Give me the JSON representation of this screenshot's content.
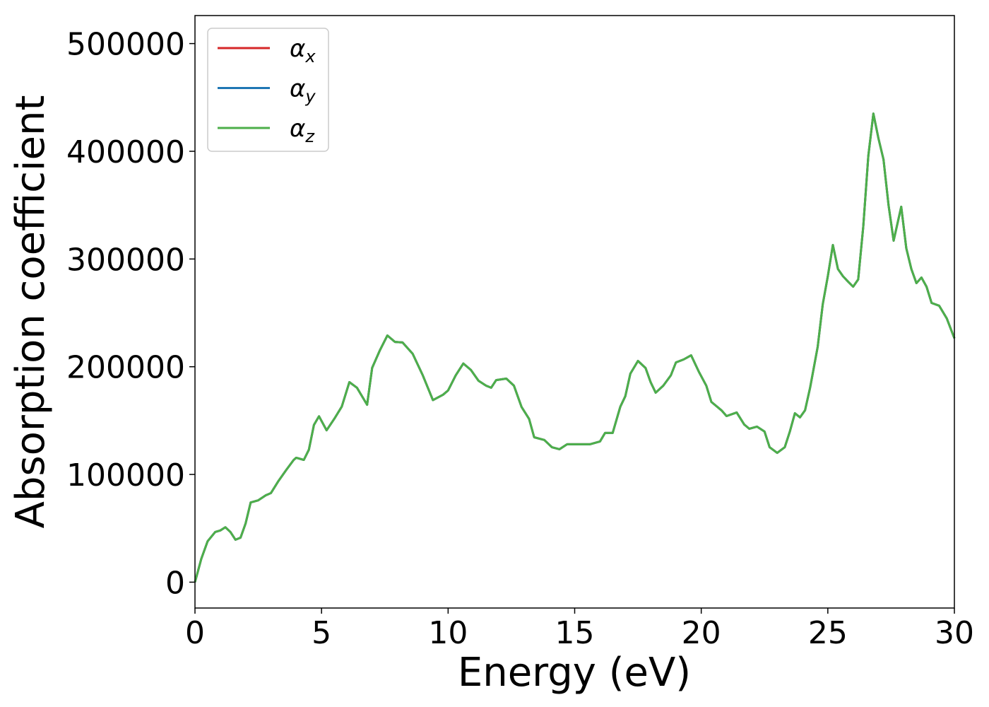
{
  "chart_data": {
    "type": "line",
    "xlabel": "Energy (eV)",
    "ylabel": "Absorption coefficient",
    "xlim": [
      0,
      30
    ],
    "xticks": [
      0,
      5,
      10,
      15,
      20,
      25,
      30
    ],
    "ylim": [
      -24000,
      526000
    ],
    "yticks": [
      0,
      100000,
      200000,
      300000,
      400000,
      500000
    ],
    "grid": false,
    "legend": "upper left",
    "x": [
      0,
      0.25,
      0.5,
      0.8,
      1.0,
      1.2,
      1.4,
      1.6,
      1.8,
      2.0,
      2.2,
      2.5,
      2.8,
      3.0,
      3.3,
      3.6,
      3.9,
      4.0,
      4.3,
      4.5,
      4.7,
      4.9,
      5.2,
      5.5,
      5.8,
      6.1,
      6.4,
      6.8,
      7.0,
      7.3,
      7.6,
      7.9,
      8.2,
      8.6,
      9.0,
      9.4,
      9.8,
      10.0,
      10.3,
      10.6,
      10.9,
      11.2,
      11.5,
      11.7,
      11.9,
      12.3,
      12.6,
      12.9,
      13.2,
      13.4,
      13.8,
      14.1,
      14.4,
      14.7,
      15.2,
      15.6,
      16.0,
      16.2,
      16.5,
      16.8,
      17.0,
      17.2,
      17.5,
      17.8,
      18.0,
      18.2,
      18.5,
      18.8,
      19.0,
      19.3,
      19.6,
      19.9,
      20.2,
      20.4,
      20.8,
      21.0,
      21.4,
      21.7,
      21.9,
      22.2,
      22.5,
      22.7,
      23.0,
      23.3,
      23.5,
      23.7,
      23.9,
      24.1,
      24.3,
      24.6,
      24.8,
      25.0,
      25.2,
      25.4,
      25.6,
      25.8,
      26.0,
      26.2,
      26.4,
      26.6,
      26.8,
      27.0,
      27.2,
      27.4,
      27.6,
      27.9,
      28.1,
      28.3,
      28.5,
      28.7,
      28.9,
      29.1,
      29.4,
      29.7,
      30.0
    ],
    "series": [
      {
        "name": "αx",
        "color": "#d62728",
        "values": [
          0,
          21700,
          38000,
          46600,
          48000,
          51000,
          46600,
          39400,
          41300,
          54500,
          74000,
          76000,
          80700,
          82700,
          94000,
          104000,
          113500,
          115500,
          113500,
          123000,
          146000,
          154000,
          141000,
          151500,
          163000,
          185700,
          180500,
          164700,
          199000,
          215000,
          229000,
          223000,
          222500,
          212000,
          192000,
          169000,
          174000,
          178000,
          192000,
          203000,
          197000,
          187000,
          182400,
          180500,
          187600,
          189000,
          182400,
          162700,
          151500,
          134500,
          132000,
          125300,
          123400,
          128000,
          128000,
          128000,
          130600,
          138500,
          138500,
          162700,
          172600,
          193600,
          205400,
          198800,
          185700,
          175900,
          182400,
          192000,
          204000,
          206700,
          210600,
          195600,
          182400,
          167300,
          159500,
          154200,
          157500,
          146300,
          142400,
          144400,
          139800,
          125300,
          120000,
          125300,
          139800,
          156800,
          153000,
          159500,
          180500,
          218500,
          258000,
          284000,
          313000,
          290700,
          284000,
          279000,
          274300,
          281000,
          330000,
          395700,
          435000,
          412000,
          392400,
          349800,
          317000,
          348500,
          310000,
          290700,
          277600,
          282800,
          274300,
          259200,
          256600,
          244800,
          226400
        ]
      },
      {
        "name": "αy",
        "color": "#1f77b4",
        "values": [
          0,
          21700,
          38000,
          46600,
          48000,
          51000,
          46600,
          39400,
          41300,
          54500,
          74000,
          76000,
          80700,
          82700,
          94000,
          104000,
          113500,
          115500,
          113500,
          123000,
          146000,
          154000,
          141000,
          151500,
          163000,
          185700,
          180500,
          164700,
          199000,
          215000,
          229000,
          223000,
          222500,
          212000,
          192000,
          169000,
          174000,
          178000,
          192000,
          203000,
          197000,
          187000,
          182400,
          180500,
          187600,
          189000,
          182400,
          162700,
          151500,
          134500,
          132000,
          125300,
          123400,
          128000,
          128000,
          128000,
          130600,
          138500,
          138500,
          162700,
          172600,
          193600,
          205400,
          198800,
          185700,
          175900,
          182400,
          192000,
          204000,
          206700,
          210600,
          195600,
          182400,
          167300,
          159500,
          154200,
          157500,
          146300,
          142400,
          144400,
          139800,
          125300,
          120000,
          125300,
          139800,
          156800,
          153000,
          159500,
          180500,
          218500,
          258000,
          284000,
          313000,
          290700,
          284000,
          279000,
          274300,
          281000,
          330000,
          395700,
          435000,
          412000,
          392400,
          349800,
          317000,
          348500,
          310000,
          290700,
          277600,
          282800,
          274300,
          259200,
          256600,
          244800,
          226400
        ]
      },
      {
        "name": "αz",
        "color": "#4daf4a",
        "values": [
          0,
          21700,
          38000,
          46600,
          48000,
          51000,
          46600,
          39400,
          41300,
          54500,
          74000,
          76000,
          80700,
          82700,
          94000,
          104000,
          113500,
          115500,
          113500,
          123000,
          146000,
          154000,
          141000,
          151500,
          163000,
          185700,
          180500,
          164700,
          199000,
          215000,
          229000,
          223000,
          222500,
          212000,
          192000,
          169000,
          174000,
          178000,
          192000,
          203000,
          197000,
          187000,
          182400,
          180500,
          187600,
          189000,
          182400,
          162700,
          151500,
          134500,
          132000,
          125300,
          123400,
          128000,
          128000,
          128000,
          130600,
          138500,
          138500,
          162700,
          172600,
          193600,
          205400,
          198800,
          185700,
          175900,
          182400,
          192000,
          204000,
          206700,
          210600,
          195600,
          182400,
          167300,
          159500,
          154200,
          157500,
          146300,
          142400,
          144400,
          139800,
          125300,
          120000,
          125300,
          139800,
          156800,
          153000,
          159500,
          180500,
          218500,
          258000,
          284000,
          313000,
          290700,
          284000,
          279000,
          274300,
          281000,
          330000,
          395700,
          435000,
          412000,
          392400,
          349800,
          317000,
          348500,
          310000,
          290700,
          277600,
          282800,
          274300,
          259200,
          256600,
          244800,
          226400
        ]
      }
    ]
  }
}
